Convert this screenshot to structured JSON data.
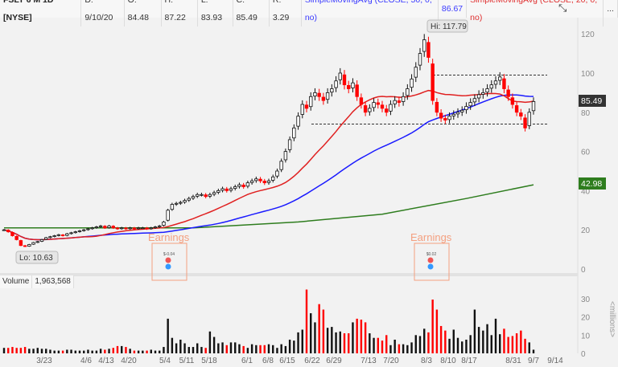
{
  "header": {
    "symbol": "FSLY 6 M 1D [NYSE]",
    "date": "D: 9/10/20",
    "open": "O: 84.48",
    "high": "H: 87.22",
    "low": "L: 83.93",
    "close": "C: 85.49",
    "range": "R: 3.29",
    "sma50_label": "SimpleMovingAvg (CLOSE, 50, 0, no)",
    "sma50_value": "86.67",
    "sma20_label": "SimpleMovingAvg (CLOSE, 20, 0, no)",
    "more": "...",
    "expand_icon": "collapse-expand-icon"
  },
  "volume_header": {
    "label": "Volume",
    "value": "1,963,568"
  },
  "annotations": {
    "hi": "Hi: 117.79",
    "lo": "Lo: 10.63",
    "earnings": [
      {
        "label": "Earnings",
        "value": "$-0.04"
      },
      {
        "label": "Earnings",
        "value": "$0.02"
      }
    ],
    "last_price": "85.49",
    "sma200_value": "42.98"
  },
  "colors": {
    "up": "#111111",
    "down": "#ff0000",
    "sma50": "#1a1aff",
    "sma20": "#e02020",
    "sma200": "#2e7d1e",
    "earnings": "#f4a080"
  },
  "chart_data": {
    "type": "candlestick",
    "price_axis": {
      "ticks": [
        0,
        20,
        40,
        60,
        80,
        100,
        120
      ],
      "range": [
        0,
        135
      ]
    },
    "volume_axis": {
      "ticks": [
        0,
        10,
        20,
        30
      ],
      "label": "<millions>",
      "range": [
        0,
        36
      ]
    },
    "x_ticks": [
      "3/23",
      "4/6",
      "4/13",
      "4/20",
      "5/4",
      "5/11",
      "5/18",
      "6/1",
      "6/8",
      "6/15",
      "6/22",
      "6/29",
      "7/13",
      "7/20",
      "8/3",
      "8/10",
      "8/17",
      "8/31",
      "9/7",
      "9/14"
    ],
    "closes": [
      20,
      19,
      17,
      15,
      12,
      11.5,
      12.5,
      13.5,
      14,
      15,
      16,
      16.5,
      17,
      17.5,
      17,
      18,
      18.5,
      19,
      19.5,
      20,
      20.5,
      21,
      21.5,
      22,
      21,
      22,
      21,
      20.5,
      21,
      20.5,
      21,
      20.5,
      21,
      21,
      20.5,
      21,
      21.5,
      22,
      24,
      30,
      33,
      33.5,
      34,
      35,
      36,
      37,
      38,
      38,
      37,
      38,
      39,
      40,
      41,
      40,
      41,
      42,
      43,
      42,
      44,
      45,
      46,
      45,
      44,
      45,
      47,
      50,
      55,
      60,
      66,
      72,
      78,
      84,
      82,
      88,
      90,
      88,
      86,
      90,
      92,
      96,
      100,
      94,
      92,
      95,
      88,
      84,
      80,
      82,
      85,
      84,
      82,
      80,
      84,
      86,
      85,
      88,
      92,
      97,
      103,
      110,
      117,
      108,
      86,
      80,
      77,
      76,
      78,
      79,
      80,
      81,
      83,
      85,
      87,
      89,
      90,
      92,
      94,
      96,
      98,
      92,
      88,
      84,
      80,
      78,
      72,
      80,
      85.49
    ],
    "volumes_millions": [
      3,
      3,
      3.5,
      3,
      3,
      3.5,
      2.5,
      2.5,
      3,
      2.5,
      2.5,
      2,
      1.5,
      1.5,
      1.5,
      2,
      2,
      1.5,
      1.5,
      1.5,
      2,
      1.5,
      1.5,
      2.5,
      2,
      2.5,
      3,
      4,
      4,
      3.5,
      2.5,
      1.5,
      1.5,
      1.5,
      1.5,
      2,
      1.5,
      1.5,
      3.5,
      19,
      8.5,
      5.5,
      7.5,
      5.5,
      3.5,
      3.5,
      5.5,
      3.5,
      3,
      12,
      9,
      5.5,
      6,
      4.5,
      6,
      6,
      5,
      4,
      3,
      5,
      4.5,
      4.5,
      4.5,
      5,
      4.5,
      3,
      5,
      4,
      7.5,
      7,
      11.5,
      13,
      35,
      22,
      17,
      27,
      24,
      14,
      14.5,
      11.5,
      12,
      11,
      11,
      17,
      19,
      18.5,
      17,
      11,
      8.5,
      8.5,
      7,
      10,
      4.5,
      7.5,
      5,
      5,
      4.5,
      6,
      10,
      9.5,
      13.5,
      11.5,
      29.5,
      24,
      15,
      12.5,
      8,
      13,
      8.5,
      6.5,
      7.5,
      10,
      24,
      14.5,
      12.5,
      16,
      10,
      19,
      10.5,
      13.5,
      9,
      9.5,
      11,
      12.5,
      8,
      6,
      2
    ],
    "sma200_points": [
      [
        0,
        21
      ],
      [
        45,
        21
      ],
      [
        70,
        24
      ],
      [
        90,
        28
      ],
      [
        110,
        36
      ],
      [
        126,
        43
      ]
    ],
    "levels": [
      99,
      74
    ]
  }
}
